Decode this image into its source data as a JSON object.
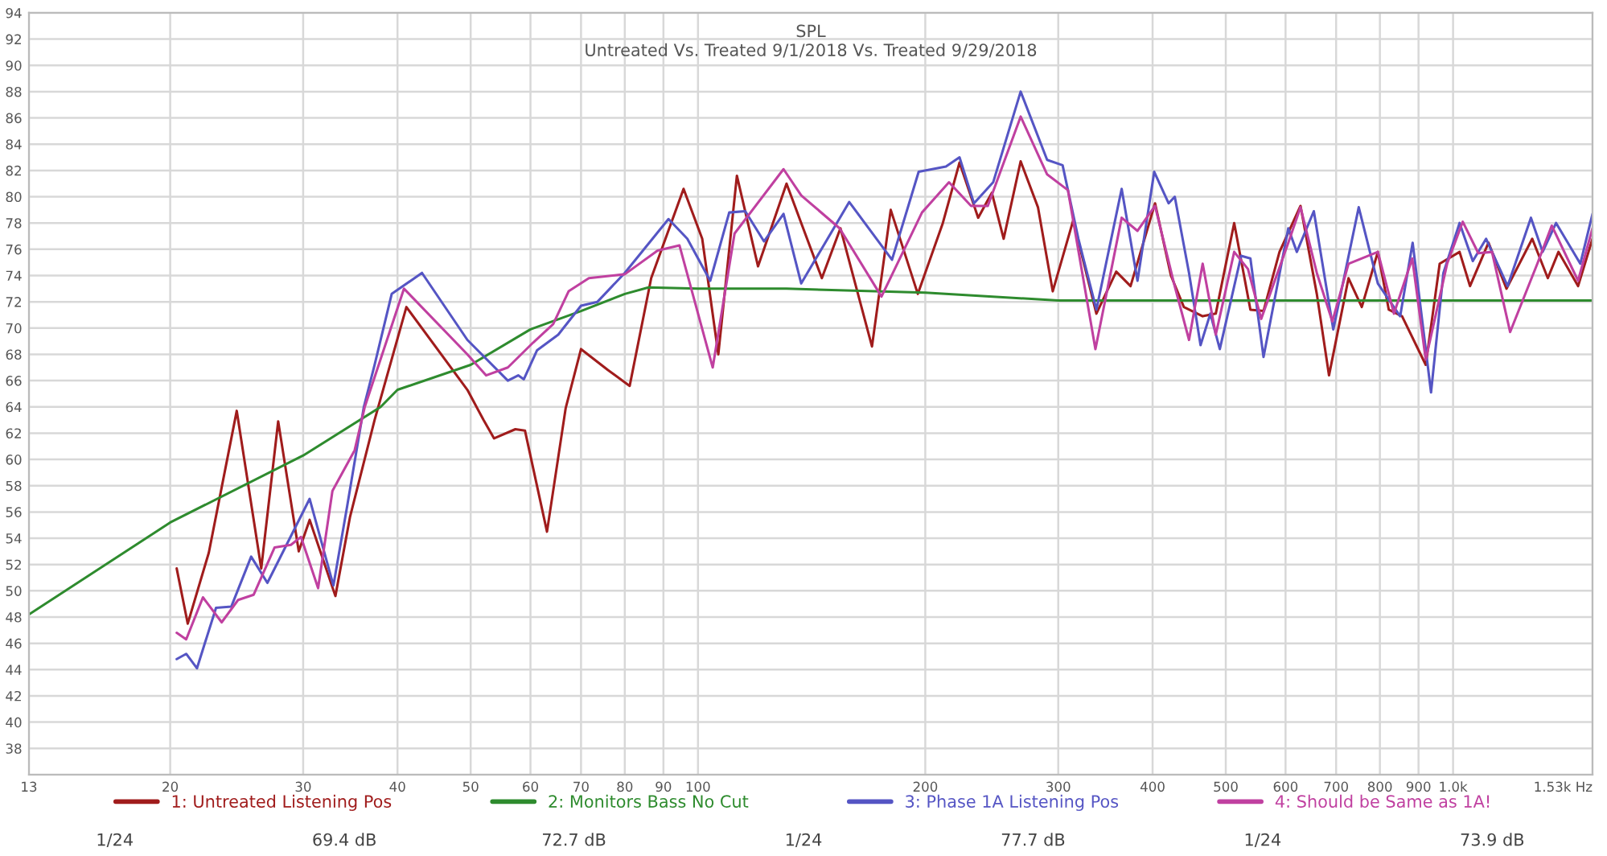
{
  "chart_data": {
    "type": "line",
    "title": "SPL",
    "subtitle": "Untreated Vs. Treated 9/1/2018 Vs. Treated 9/29/2018",
    "log": "x",
    "grid": true,
    "legend": "bottom",
    "xlim": [
      13,
      1530
    ],
    "ylim": [
      36,
      94
    ],
    "xticks": [
      13,
      20,
      30,
      40,
      50,
      60,
      70,
      80,
      90,
      100,
      200,
      300,
      400,
      500,
      600,
      700,
      800,
      900,
      {
        "value": 1000,
        "label": "1.0k"
      },
      {
        "value": 1530,
        "label": "1.53k Hz"
      }
    ],
    "yticks": [
      38,
      40,
      42,
      44,
      46,
      48,
      50,
      52,
      54,
      56,
      58,
      60,
      62,
      64,
      66,
      68,
      70,
      72,
      74,
      76,
      78,
      80,
      82,
      84,
      86,
      88,
      90,
      92,
      94
    ],
    "annotations": [
      "1/24",
      "69.4 dB",
      "72.7 dB",
      "1/24",
      "77.7 dB",
      "1/24",
      "73.9 dB"
    ],
    "series": [
      {
        "name": "1: Untreated Listening Pos",
        "color": "#a01c1c",
        "x": [
          20.4,
          21.1,
          22.5,
          24.5,
          26.4,
          27.8,
          29.6,
          30.6,
          33.1,
          34.6,
          37.3,
          41.1,
          49.5,
          52,
          53.7,
          57.3,
          59,
          63.1,
          66.8,
          70,
          76,
          81.2,
          86.7,
          95.7,
          101.3,
          106.4,
          112.6,
          120.1,
          131,
          137,
          145.9,
          154.4,
          170,
          180,
          195.5,
          211,
          222,
          235,
          245,
          254,
          267.5,
          282,
          295,
          314,
          337,
          358,
          374,
          403,
          423,
          440,
          466,
          485,
          513,
          539,
          561,
          589,
          628,
          660,
          685,
          727,
          757,
          795,
          822,
          856,
          920,
          960,
          1020,
          1053,
          1114,
          1177,
          1273,
          1335,
          1379,
          1464,
          1530
        ],
        "values": [
          51.7,
          47.5,
          52.9,
          63.7,
          51.7,
          62.9,
          53.0,
          55.4,
          49.6,
          55.6,
          63.0,
          71.6,
          65.3,
          63.0,
          61.6,
          62.3,
          62.2,
          54.5,
          63.9,
          68.4,
          66.8,
          65.6,
          73.8,
          80.6,
          76.8,
          68.0,
          81.6,
          74.7,
          81.0,
          78.0,
          73.8,
          77.6,
          68.6,
          79.0,
          72.6,
          78.0,
          82.6,
          78.4,
          80.3,
          76.8,
          82.7,
          79.2,
          72.8,
          78.2,
          71.1,
          74.3,
          73.2,
          79.5,
          74.0,
          71.6,
          70.9,
          71.1,
          78.0,
          71.4,
          71.3,
          75.8,
          79.3,
          72.6,
          66.4,
          73.8,
          71.6,
          75.8,
          71.4,
          70.9,
          67.2,
          74.9,
          75.8,
          73.2,
          76.5,
          73.0,
          76.8,
          73.8,
          75.8,
          73.2,
          76.8
        ]
      },
      {
        "name": "2: Monitors Bass No Cut",
        "color": "#2e8b2e",
        "x": [
          13,
          20,
          30,
          38,
          40,
          50,
          60,
          70,
          80,
          86,
          100,
          131,
          200,
          300,
          500,
          1000,
          1530
        ],
        "values": [
          48.2,
          55.2,
          60.3,
          64.0,
          65.3,
          67.2,
          69.9,
          71.3,
          72.6,
          73.1,
          73.0,
          73.0,
          72.7,
          72.1,
          72.1,
          72.1,
          72.1
        ]
      },
      {
        "name": "3: Phase 1A Listening Pos",
        "color": "#5555c4",
        "x": [
          20.4,
          21.0,
          21.7,
          23.0,
          24.1,
          25.6,
          26.9,
          30.6,
          32.9,
          34.3,
          36.1,
          37.3,
          39.3,
          43.1,
          49.5,
          56,
          57.8,
          58.8,
          61.2,
          65.3,
          70,
          73.6,
          80,
          91.4,
          96.8,
          103.8,
          110,
          115.5,
          122.3,
          129.8,
          137,
          158.6,
          180.7,
          196,
          213,
          222,
          232,
          246,
          267.5,
          290,
          304,
          319,
          337,
          364,
          382,
          402,
          420,
          428,
          447,
          463,
          477,
          491,
          524,
          539,
          561,
          605,
          621,
          654,
          694,
          750,
          795,
          851,
          884,
          935,
          971,
          1020,
          1062,
          1106,
          1181,
          1268,
          1314,
          1369,
          1474,
          1530
        ],
        "values": [
          44.8,
          45.2,
          44.1,
          48.7,
          48.8,
          52.6,
          50.6,
          57.0,
          50.4,
          56.4,
          64.0,
          67.2,
          72.6,
          74.2,
          69.1,
          66.0,
          66.4,
          66.1,
          68.3,
          69.5,
          71.7,
          72.0,
          74.2,
          78.3,
          76.8,
          73.6,
          78.8,
          78.9,
          76.6,
          78.7,
          73.4,
          79.6,
          75.2,
          81.9,
          82.3,
          83.0,
          79.5,
          81.1,
          88.0,
          82.8,
          82.4,
          76.8,
          71.4,
          80.6,
          73.6,
          81.9,
          79.5,
          80.0,
          74.2,
          68.7,
          71.1,
          68.4,
          75.5,
          75.3,
          67.8,
          77.6,
          75.8,
          78.9,
          69.9,
          79.2,
          73.4,
          70.9,
          76.5,
          65.1,
          74.2,
          78.0,
          75.1,
          76.8,
          73.2,
          78.4,
          75.8,
          78.0,
          74.9,
          78.7
        ]
      },
      {
        "name": "4: Should be Same as 1A!",
        "color": "#c040a0",
        "x": [
          20.4,
          21.0,
          22.1,
          23.4,
          24.6,
          25.8,
          27.5,
          28.9,
          29.8,
          31.4,
          32.8,
          35.1,
          36.2,
          40.8,
          49.5,
          52.4,
          56,
          60.5,
          64.3,
          67.4,
          71.7,
          80,
          88.4,
          94.5,
          104.6,
          111.8,
          129.8,
          137,
          154,
          175,
          198,
          215,
          230,
          242,
          267.5,
          290,
          309,
          336,
          364,
          382,
          403,
          427,
          447,
          466,
          485,
          513,
          535,
          557,
          605,
          628,
          660,
          692,
          727,
          795,
          835,
          883,
          920,
          982,
          1030,
          1080,
          1126,
          1190,
          1293,
          1351,
          1464,
          1530
        ],
        "values": [
          46.8,
          46.3,
          49.5,
          47.6,
          49.3,
          49.7,
          53.3,
          53.5,
          54.1,
          50.2,
          57.6,
          60.7,
          64.0,
          73.0,
          68.0,
          66.4,
          67.0,
          68.9,
          70.3,
          72.8,
          73.8,
          74.1,
          75.9,
          76.3,
          67.0,
          77.2,
          82.1,
          80.1,
          77.6,
          72.4,
          78.8,
          81.1,
          79.3,
          79.3,
          86.1,
          81.7,
          80.5,
          68.4,
          78.4,
          77.4,
          79.3,
          73.4,
          69.1,
          74.9,
          69.5,
          75.8,
          74.5,
          70.7,
          76.5,
          79.2,
          74.2,
          70.5,
          74.9,
          75.8,
          71.1,
          75.3,
          67.6,
          74.9,
          78.1,
          75.7,
          75.8,
          69.7,
          74.9,
          77.8,
          73.6,
          77.6
        ]
      }
    ]
  }
}
